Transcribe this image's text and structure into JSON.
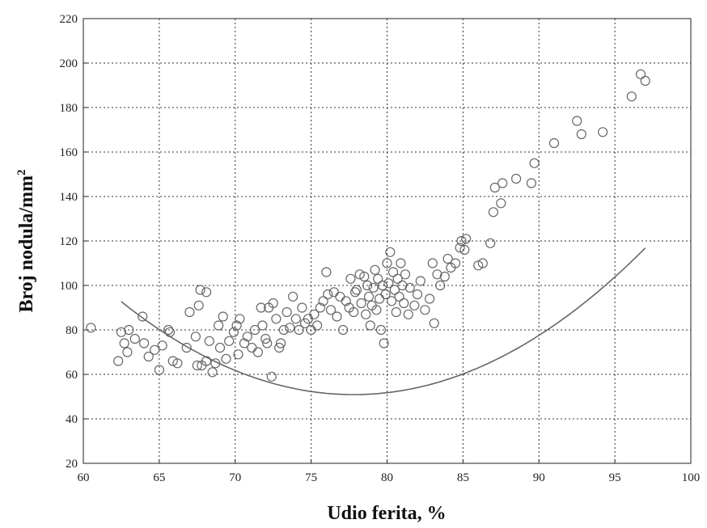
{
  "chart_data": {
    "type": "scatter",
    "xlabel": "Udio ferita, %",
    "ylabel_main": "Broj nodula/mm",
    "ylabel_sup": "2",
    "xlim": [
      60,
      100
    ],
    "ylim": [
      20,
      220
    ],
    "xticks": [
      60,
      65,
      70,
      75,
      80,
      85,
      90,
      95,
      100
    ],
    "yticks": [
      20,
      40,
      60,
      80,
      100,
      120,
      140,
      160,
      180,
      200,
      220
    ],
    "grid": true,
    "points": [
      [
        60.5,
        81
      ],
      [
        62.3,
        66
      ],
      [
        62.5,
        79
      ],
      [
        62.7,
        74
      ],
      [
        62.9,
        70
      ],
      [
        63.0,
        80
      ],
      [
        63.4,
        76
      ],
      [
        63.9,
        86
      ],
      [
        64.0,
        74
      ],
      [
        64.3,
        68
      ],
      [
        64.7,
        71
      ],
      [
        65.0,
        62
      ],
      [
        65.2,
        73
      ],
      [
        65.6,
        80
      ],
      [
        65.7,
        79
      ],
      [
        65.9,
        66
      ],
      [
        66.2,
        65
      ],
      [
        66.8,
        72
      ],
      [
        67.0,
        88
      ],
      [
        67.4,
        77
      ],
      [
        67.5,
        64
      ],
      [
        67.6,
        91
      ],
      [
        67.7,
        98
      ],
      [
        67.8,
        64
      ],
      [
        68.1,
        97
      ],
      [
        68.1,
        66
      ],
      [
        68.3,
        75
      ],
      [
        68.5,
        61
      ],
      [
        68.7,
        65
      ],
      [
        68.9,
        82
      ],
      [
        69.0,
        72
      ],
      [
        69.2,
        86
      ],
      [
        69.4,
        67
      ],
      [
        69.6,
        75
      ],
      [
        69.9,
        79
      ],
      [
        70.1,
        82
      ],
      [
        70.3,
        85
      ],
      [
        70.2,
        69
      ],
      [
        70.6,
        74
      ],
      [
        70.8,
        77
      ],
      [
        71.1,
        72
      ],
      [
        71.3,
        80
      ],
      [
        71.5,
        70
      ],
      [
        71.7,
        90
      ],
      [
        71.8,
        82
      ],
      [
        72.0,
        76
      ],
      [
        72.1,
        74
      ],
      [
        72.2,
        90
      ],
      [
        72.4,
        59
      ],
      [
        72.5,
        92
      ],
      [
        72.7,
        85
      ],
      [
        72.9,
        72
      ],
      [
        73.0,
        74
      ],
      [
        73.2,
        80
      ],
      [
        73.4,
        88
      ],
      [
        73.6,
        81
      ],
      [
        73.8,
        95
      ],
      [
        74.0,
        85
      ],
      [
        74.2,
        80
      ],
      [
        74.4,
        90
      ],
      [
        74.6,
        83
      ],
      [
        74.8,
        85
      ],
      [
        75.0,
        80
      ],
      [
        75.2,
        87
      ],
      [
        75.4,
        82
      ],
      [
        75.6,
        90
      ],
      [
        75.8,
        93
      ],
      [
        76.0,
        106
      ],
      [
        76.1,
        96
      ],
      [
        76.3,
        89
      ],
      [
        76.5,
        97
      ],
      [
        76.7,
        86
      ],
      [
        76.9,
        95
      ],
      [
        77.1,
        80
      ],
      [
        77.3,
        93
      ],
      [
        77.5,
        90
      ],
      [
        77.6,
        103
      ],
      [
        77.8,
        88
      ],
      [
        77.9,
        97
      ],
      [
        78.0,
        98
      ],
      [
        78.2,
        105
      ],
      [
        78.3,
        92
      ],
      [
        78.5,
        104
      ],
      [
        78.6,
        87
      ],
      [
        78.7,
        100
      ],
      [
        78.8,
        95
      ],
      [
        78.9,
        82
      ],
      [
        79.0,
        91
      ],
      [
        79.1,
        99
      ],
      [
        79.2,
        107
      ],
      [
        79.3,
        89
      ],
      [
        79.4,
        103
      ],
      [
        79.5,
        94
      ],
      [
        79.6,
        80
      ],
      [
        79.7,
        100
      ],
      [
        79.8,
        74
      ],
      [
        79.9,
        96
      ],
      [
        80.0,
        110
      ],
      [
        80.1,
        101
      ],
      [
        80.2,
        115
      ],
      [
        80.3,
        93
      ],
      [
        80.4,
        106
      ],
      [
        80.5,
        98
      ],
      [
        80.6,
        88
      ],
      [
        80.7,
        103
      ],
      [
        80.8,
        95
      ],
      [
        80.9,
        110
      ],
      [
        81.0,
        100
      ],
      [
        81.1,
        92
      ],
      [
        81.2,
        105
      ],
      [
        81.4,
        87
      ],
      [
        81.5,
        99
      ],
      [
        81.8,
        91
      ],
      [
        82.0,
        96
      ],
      [
        82.2,
        102
      ],
      [
        82.5,
        89
      ],
      [
        82.8,
        94
      ],
      [
        83.0,
        110
      ],
      [
        83.1,
        83
      ],
      [
        83.3,
        105
      ],
      [
        83.5,
        100
      ],
      [
        83.8,
        104
      ],
      [
        84.0,
        112
      ],
      [
        84.2,
        108
      ],
      [
        84.5,
        110
      ],
      [
        84.8,
        117
      ],
      [
        84.9,
        120
      ],
      [
        85.1,
        116
      ],
      [
        85.2,
        121
      ],
      [
        86.0,
        109
      ],
      [
        86.3,
        110
      ],
      [
        86.8,
        119
      ],
      [
        87.0,
        133
      ],
      [
        87.1,
        144
      ],
      [
        87.5,
        137
      ],
      [
        87.6,
        146
      ],
      [
        88.5,
        148
      ],
      [
        89.5,
        146
      ],
      [
        89.7,
        155
      ],
      [
        91.0,
        164
      ],
      [
        92.5,
        174
      ],
      [
        92.8,
        168
      ],
      [
        94.2,
        169
      ],
      [
        96.1,
        185
      ],
      [
        96.7,
        195
      ],
      [
        97.0,
        192
      ]
    ],
    "fit": {
      "type": "quadratic",
      "coefficients": [
        1133.05,
        -27.82,
        0.1788
      ],
      "x_range": [
        62.5,
        97
      ]
    }
  }
}
